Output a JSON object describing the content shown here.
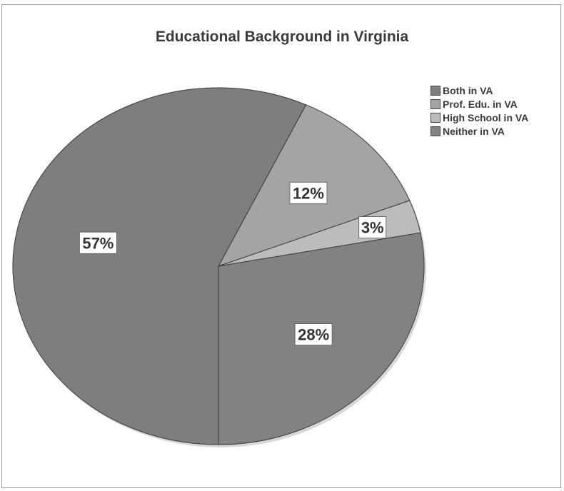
{
  "chart_data": {
    "type": "pie",
    "title": "Educational Background in Virginia",
    "categories": [
      "Both in VA",
      "Prof. Edu. in VA",
      "High School in VA",
      "Neither in VA"
    ],
    "values": [
      57,
      12,
      3,
      28
    ],
    "data_labels": [
      "57%",
      "12%",
      "3%",
      "28%"
    ],
    "colors": [
      "#7e7e7e",
      "#a4a4a4",
      "#bcbcbc",
      "#828282"
    ],
    "legend_position": "top-right"
  }
}
